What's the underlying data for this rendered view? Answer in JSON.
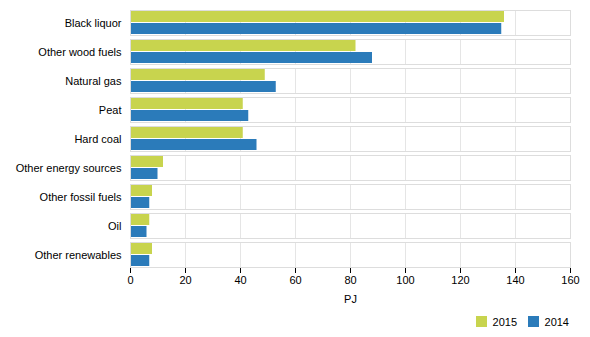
{
  "chart_data": {
    "type": "bar",
    "orientation": "horizontal",
    "categories": [
      "Black liquor",
      "Other wood fuels",
      "Natural gas",
      "Peat",
      "Hard coal",
      "Other energy sources",
      "Other fossil fuels",
      "Oil",
      "Other renewables"
    ],
    "series": [
      {
        "name": "2015",
        "color": "#c8d44e",
        "values": [
          136,
          82,
          49,
          41,
          41,
          12,
          8,
          7,
          8
        ]
      },
      {
        "name": "2014",
        "color": "#2b7bba",
        "values": [
          135,
          88,
          53,
          43,
          46,
          10,
          7,
          6,
          7
        ]
      }
    ],
    "xlabel": "PJ",
    "xlim": [
      0,
      160
    ],
    "xticks": [
      0,
      20,
      40,
      60,
      80,
      100,
      120,
      140,
      160
    ],
    "grid": true,
    "legend": "lower right"
  }
}
